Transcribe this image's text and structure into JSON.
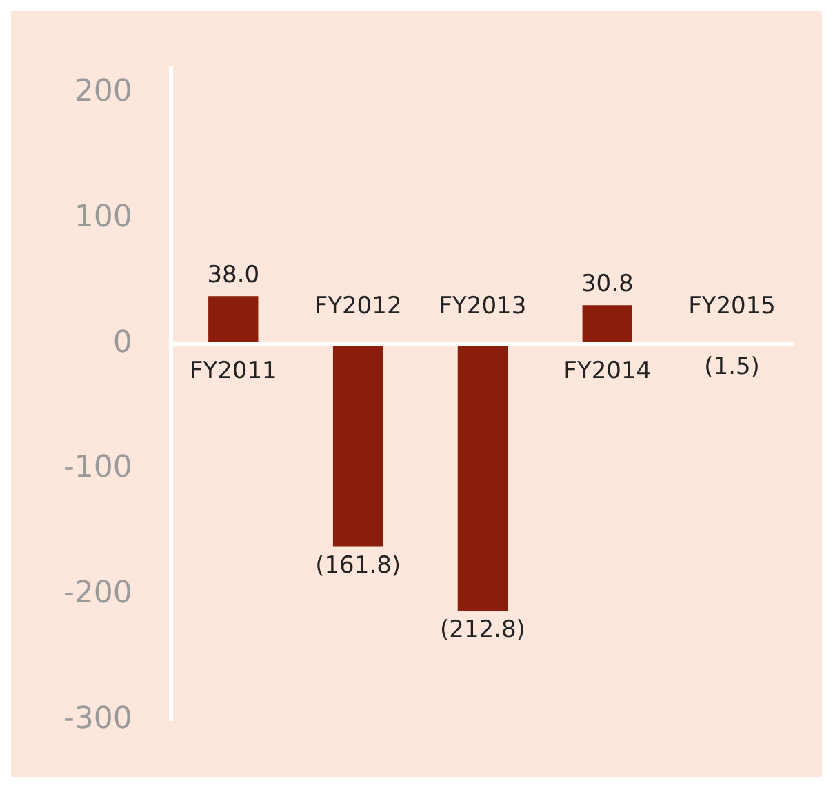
{
  "chart_data": {
    "type": "bar",
    "categories": [
      "FY2011",
      "FY2012",
      "FY2013",
      "FY2014",
      "FY2015"
    ],
    "values": [
      38.0,
      -161.8,
      -212.8,
      30.8,
      -1.5
    ],
    "value_labels": [
      "38.0",
      "(161.8)",
      "(212.8)",
      "30.8",
      "(1.5)"
    ],
    "color": "#8b1e0a",
    "ylim": [
      -300,
      220
    ],
    "yticks": [
      -300,
      -200,
      -100,
      0,
      100,
      200
    ],
    "grid": false,
    "legend": false
  }
}
